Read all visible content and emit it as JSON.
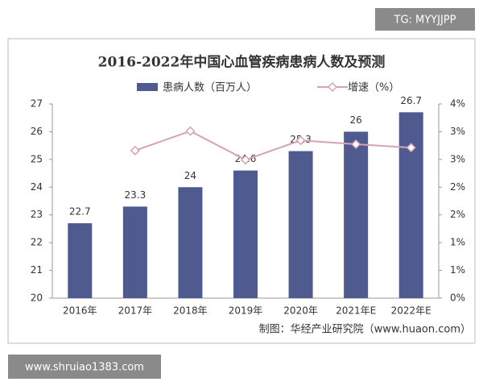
{
  "chart_data": {
    "type": "bar",
    "title": "2016-2022年中国心血管疾病患病人数及预测",
    "categories": [
      "2016年",
      "2017年",
      "2018年",
      "2019年",
      "2020年",
      "2021年E",
      "2022年E"
    ],
    "series": [
      {
        "name": "患病人数（百万人）",
        "type": "bar",
        "color": "#4f5b8f",
        "values": [
          22.7,
          23.3,
          24,
          24.6,
          25.3,
          26,
          26.7
        ]
      },
      {
        "name": "增速（%）",
        "type": "line",
        "axis": "y2",
        "color": "#d6a3b2",
        "values": [
          null,
          3.04,
          3.44,
          2.85,
          3.25,
          3.17,
          3.1
        ]
      }
    ],
    "ylim": [
      20,
      27
    ],
    "yticks": [
      20,
      21,
      22,
      23,
      24,
      25,
      26,
      27
    ],
    "y2lim": [
      0,
      4
    ],
    "y2ticks": [
      {
        "value": 0,
        "label": "0%"
      },
      {
        "value": 0.571,
        "label": "1%"
      },
      {
        "value": 1.143,
        "label": "1%"
      },
      {
        "value": 1.714,
        "label": "2%"
      },
      {
        "value": 2.286,
        "label": "2%"
      },
      {
        "value": 2.857,
        "label": "3%"
      },
      {
        "value": 3.429,
        "label": "3%"
      },
      {
        "value": 4,
        "label": "4%"
      }
    ],
    "legend": "top",
    "source": "制图：华经产业研究院（www.huaon.com）"
  },
  "overlay": {
    "top_right": "TG: MYYJJPP",
    "bottom_left": "www.shruiao1383.com"
  }
}
